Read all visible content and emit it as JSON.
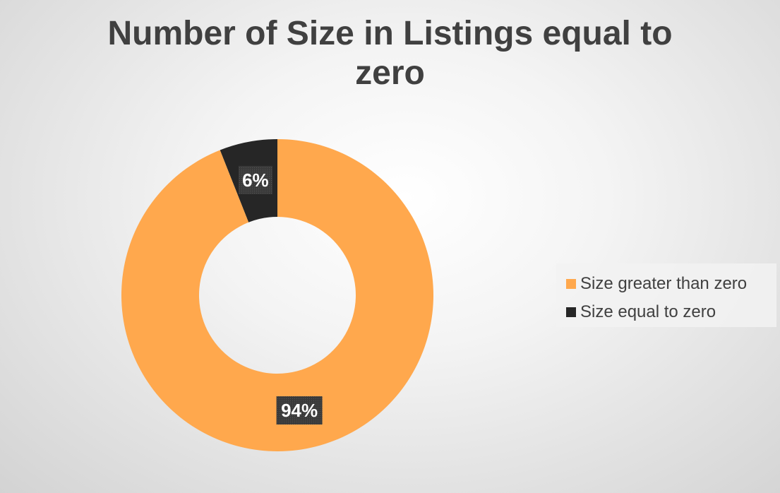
{
  "chart_data": {
    "type": "pie",
    "variant": "doughnut",
    "title": "Number of Size in Listings equal to zero",
    "title_lines": [
      "Number of Size in Listings equal to",
      "zero"
    ],
    "categories": [
      "Size equal to zero",
      "Size greater than zero"
    ],
    "values": [
      6,
      94
    ],
    "value_labels": [
      "6%",
      "94%"
    ],
    "colors": [
      "#262626",
      "#FFA84D"
    ],
    "legend": {
      "position": "right",
      "items": [
        {
          "label": "Size greater than zero",
          "color": "#FFA84D"
        },
        {
          "label": "Size equal to zero",
          "color": "#262626"
        }
      ]
    },
    "start": "top",
    "direction": "counterclockwise"
  }
}
